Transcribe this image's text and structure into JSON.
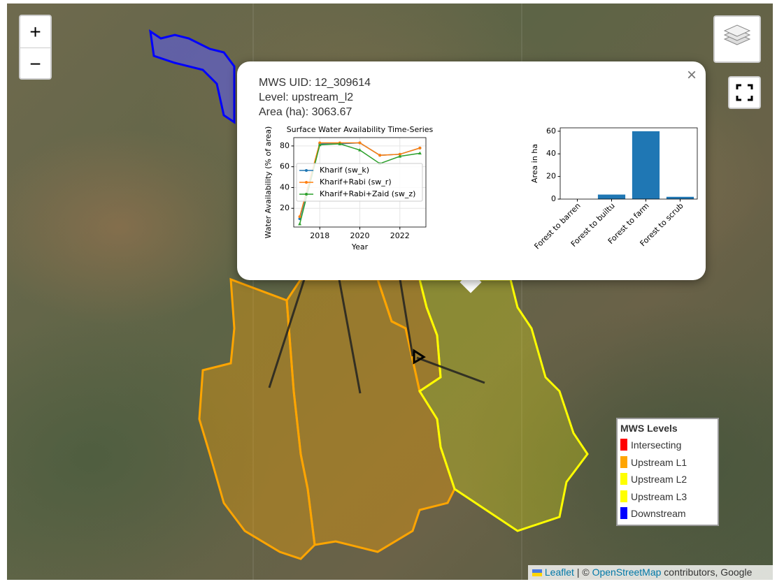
{
  "controls": {
    "zoom_in": "+",
    "zoom_out": "−",
    "close": "×"
  },
  "popup": {
    "uid": "MWS UID: 12_309614",
    "level": "Level: upstream_l2",
    "area": "Area (ha): 3063.67"
  },
  "chart_data": [
    {
      "type": "line",
      "title": "Surface Water Availability Time-Series",
      "x_label": "Year",
      "y_label": "Water Availability (% of area)",
      "x": [
        2017,
        2018,
        2019,
        2020,
        2021,
        2022,
        2023
      ],
      "series": [
        {
          "name": "Kharif (sw_k)",
          "color": "#1f77b4",
          "values": [
            10,
            82,
            82,
            83,
            71,
            72,
            78
          ]
        },
        {
          "name": "Kharif+Rabi (sw_r)",
          "color": "#ff7f0e",
          "values": [
            12,
            83,
            83,
            83,
            71,
            72,
            78
          ]
        },
        {
          "name": "Kharif+Rabi+Zaid (sw_z)",
          "color": "#2ca02c",
          "values": [
            5,
            81,
            82,
            76,
            63,
            70,
            73
          ]
        }
      ],
      "xlim": [
        2016.7,
        2023.3
      ],
      "xticks": [
        2018,
        2020,
        2022
      ],
      "ylim": [
        2,
        88
      ],
      "yticks": [
        20,
        40,
        60,
        80
      ],
      "grid": true,
      "legend": "center-left"
    },
    {
      "type": "bar",
      "y_label": "Area in ha",
      "categories": [
        "Forest to barren",
        "Forest to builtu",
        "Forest to farm",
        "Forest to scrub"
      ],
      "values": [
        0,
        4,
        60,
        2
      ],
      "color": "#1f77b4",
      "ylim": [
        0,
        63
      ],
      "yticks": [
        0,
        20,
        40,
        60
      ],
      "grid": false
    }
  ],
  "legend": {
    "title": "MWS Levels",
    "items": [
      {
        "label": "Intersecting",
        "color": "#ff0000"
      },
      {
        "label": "Upstream L1",
        "color": "#ffa500"
      },
      {
        "label": "Upstream L2",
        "color": "#ffff00"
      },
      {
        "label": "Upstream L3",
        "color": "#ffff00"
      },
      {
        "label": "Downstream",
        "color": "#0000ff"
      }
    ]
  },
  "attribution": {
    "leaflet": "Leaflet",
    "separator": "| ©",
    "osm": "OpenStreetMap",
    "rest": "contributors, Google"
  }
}
